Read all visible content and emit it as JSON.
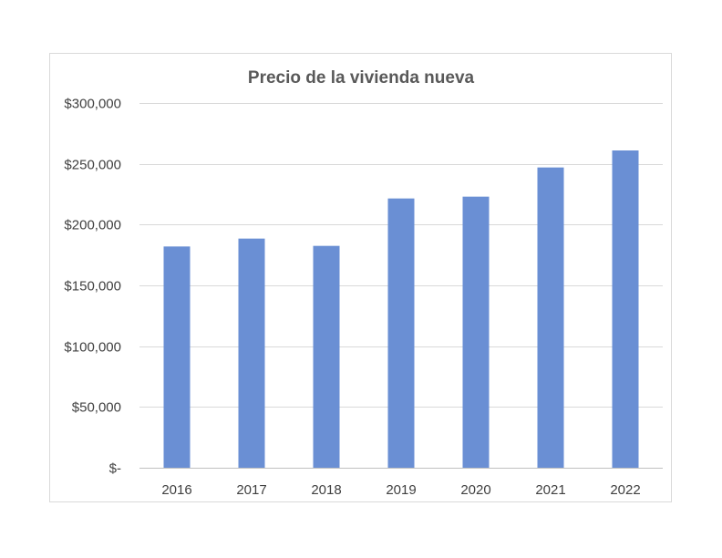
{
  "chart_data": {
    "type": "bar",
    "title": "Precio de la vivienda nueva",
    "xlabel": "",
    "ylabel": "",
    "categories": [
      "2016",
      "2017",
      "2018",
      "2019",
      "2020",
      "2021",
      "2022"
    ],
    "series": [
      {
        "values": [
          182000,
          188500,
          182500,
          221500,
          223000,
          247000,
          261000
        ],
        "color": "#6a8fd4"
      }
    ],
    "ylim": [
      0,
      300000
    ],
    "y_ticks": [
      0,
      50000,
      100000,
      150000,
      200000,
      250000,
      300000
    ],
    "y_tick_labels": [
      "$-",
      "$50,000",
      "$100,000",
      "$150,000",
      "$200,000",
      "$250,000",
      "$300,000"
    ],
    "grid": true,
    "legend": "none"
  }
}
